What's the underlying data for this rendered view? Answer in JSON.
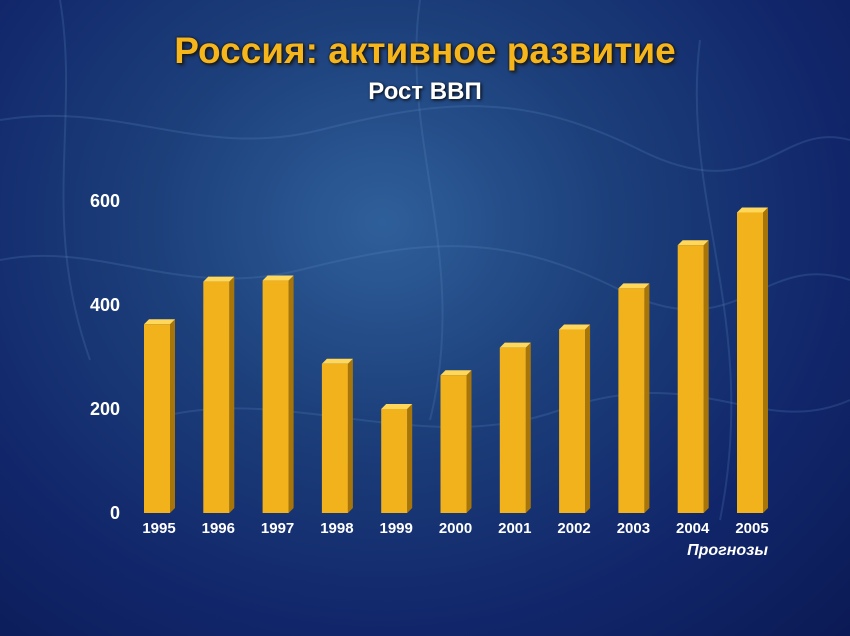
{
  "slide": {
    "title": "Россия: активное развитие",
    "subtitle": "Рост ВВП"
  },
  "chart_data": {
    "type": "bar",
    "title": "Рост ВВП",
    "categories": [
      "1995",
      "1996",
      "1997",
      "1998",
      "1999",
      "2000",
      "2001",
      "2002",
      "2003",
      "2004",
      "2005"
    ],
    "values": [
      363,
      445,
      447,
      287,
      200,
      265,
      318,
      353,
      432,
      515,
      578
    ],
    "ylim": [
      0,
      600
    ],
    "yticks": [
      0,
      200,
      400,
      600
    ],
    "xlabel": "",
    "ylabel": "",
    "annotation": "Прогнозы",
    "bar_color": "#f2b21b",
    "grid": false
  },
  "colors": {
    "title": "#f6b51a",
    "bar_front": "#f2b21b",
    "bar_side": "#a87508",
    "bar_top": "#ffd75a"
  }
}
